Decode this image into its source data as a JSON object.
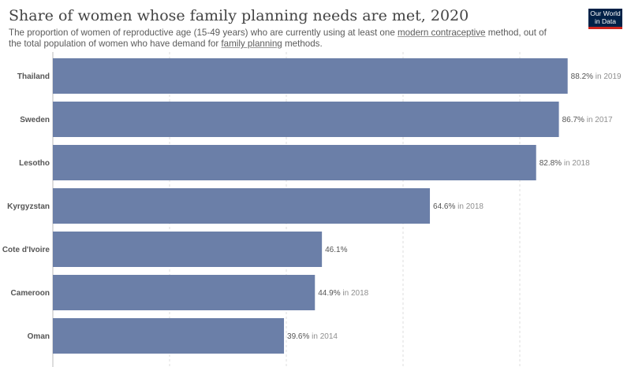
{
  "header": {
    "title": "Share of women whose family planning needs are met, 2020",
    "subtitle_parts": [
      "The proportion of women of reproductive age (15-49 years) who are currently using at least one ",
      "modern contraceptive",
      " method, out of the total population of women who have demand for ",
      "family planning",
      " methods."
    ],
    "logo_line1": "Our World",
    "logo_line2": "in Data"
  },
  "colors": {
    "bar": "#6b7fa8",
    "logo_bg": "#002147",
    "logo_accent": "#ce261e",
    "grid": "#dddddd"
  },
  "chart_data": {
    "type": "bar",
    "orientation": "horizontal",
    "xlim": [
      0,
      100
    ],
    "grid": true,
    "categories": [
      "Thailand",
      "Sweden",
      "Lesotho",
      "Kyrgyzstan",
      "Cote d'Ivoire",
      "Cameroon",
      "Oman"
    ],
    "values": [
      88.2,
      86.7,
      82.8,
      64.6,
      46.1,
      44.9,
      39.6
    ],
    "value_labels": [
      "88.2%",
      "86.7%",
      "82.8%",
      "64.6%",
      "46.1%",
      "44.9%",
      "39.6%"
    ],
    "year_notes": [
      "in 2019",
      "in 2017",
      "in 2018",
      "in 2018",
      "",
      "in 2018",
      "in 2014"
    ]
  }
}
